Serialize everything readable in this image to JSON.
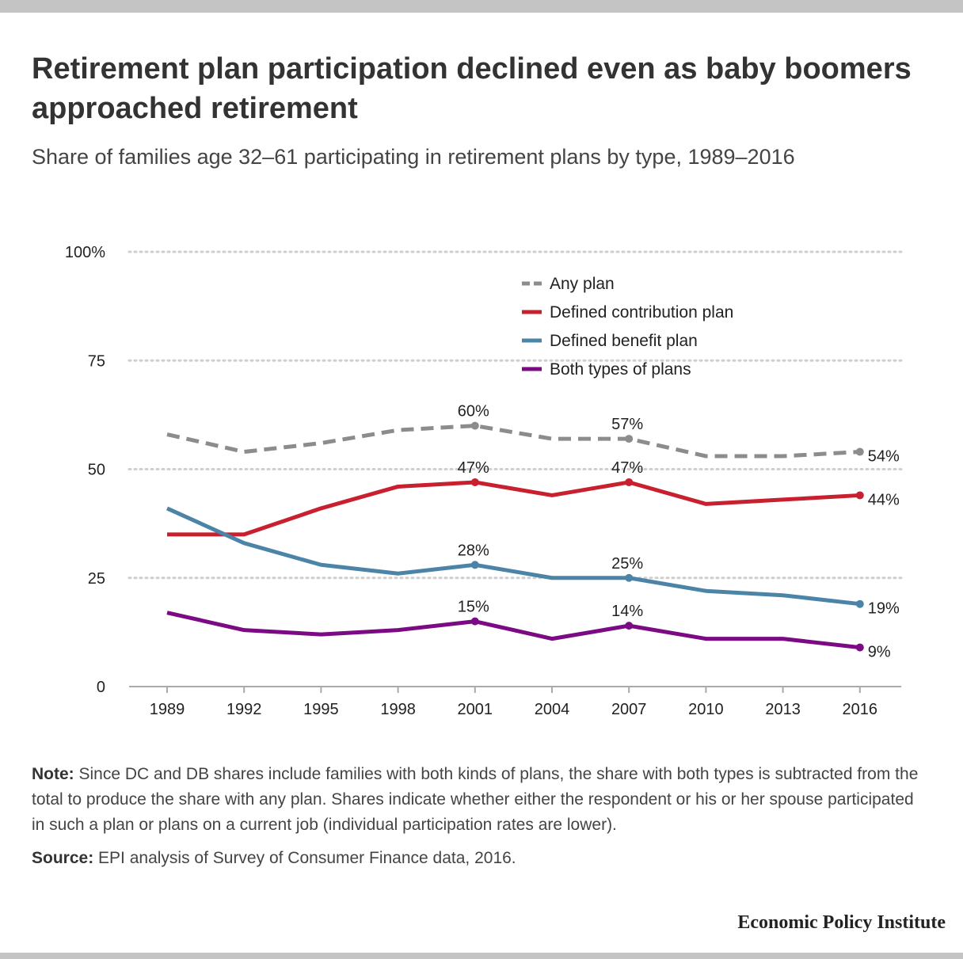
{
  "header": {
    "title": "Retirement plan participation declined even as baby boomers approached retirement",
    "subtitle": "Share of families age 32–61 participating in retirement plans by type, 1989–2016"
  },
  "chart_data": {
    "type": "line",
    "title": "Retirement plan participation declined even as baby boomers approached retirement",
    "subtitle": "Share of families age 32–61 participating in retirement plans by type, 1989–2016",
    "xlabel": "",
    "ylabel": "",
    "x": [
      "1989",
      "1992",
      "1995",
      "1998",
      "2001",
      "2004",
      "2007",
      "2010",
      "2013",
      "2016"
    ],
    "ylim": [
      0,
      100
    ],
    "y_ticks": [
      0,
      25,
      50,
      75,
      100
    ],
    "y_tick_labels": [
      "0",
      "25",
      "50",
      "75",
      "100%"
    ],
    "grid": "horizontal dotted",
    "legend_position": "top-right",
    "series": [
      {
        "name": "Any plan",
        "color": "#8c8c8c",
        "style": "dashed",
        "values": [
          58,
          54,
          56,
          59,
          60,
          57,
          57,
          53,
          53,
          54
        ],
        "labels": {
          "4": "60%",
          "6": "57%",
          "9": "54%"
        }
      },
      {
        "name": "Defined contribution plan",
        "color": "#c8202f",
        "style": "solid",
        "values": [
          35,
          35,
          41,
          46,
          47,
          44,
          47,
          42,
          43,
          44
        ],
        "labels": {
          "4": "47%",
          "6": "47%",
          "9": "44%"
        }
      },
      {
        "name": "Defined benefit plan",
        "color": "#4c84a8",
        "style": "solid",
        "values": [
          41,
          33,
          28,
          26,
          28,
          25,
          25,
          22,
          21,
          19
        ],
        "labels": {
          "4": "28%",
          "6": "25%",
          "9": "19%"
        }
      },
      {
        "name": "Both types of plans",
        "color": "#7b0a84",
        "style": "solid",
        "values": [
          17,
          13,
          12,
          13,
          15,
          11,
          14,
          11,
          11,
          9
        ],
        "labels": {
          "4": "15%",
          "6": "14%",
          "9": "9%"
        }
      }
    ]
  },
  "notes": {
    "note_label": "Note:",
    "note_text": " Since DC and DB shares include families with both kinds of plans, the share with both types is subtracted from the total to produce the share with any plan. Shares indicate whether either the respondent or his or her spouse participated in such a plan or plans on a current job (individual participation rates are lower).",
    "source_label": "Source:",
    "source_text": " EPI analysis of Survey of Consumer Finance data, 2016."
  },
  "brand": "Economic Policy Institute"
}
